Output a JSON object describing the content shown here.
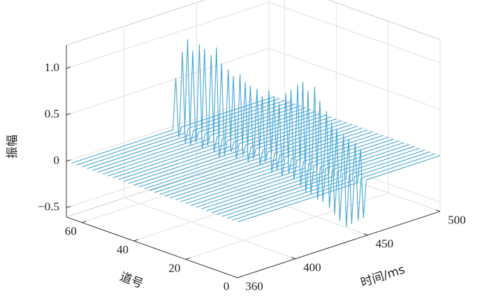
{
  "chart_data": {
    "type": "waterfall",
    "xlabel": "时间/ms",
    "ylabel": "道号",
    "zlabel": "振幅",
    "xlim": [
      360,
      500
    ],
    "xticks": [
      360,
      400,
      450,
      500
    ],
    "ylim": [
      0,
      66
    ],
    "yticks": [
      0,
      20,
      40,
      60
    ],
    "zlim": [
      -0.6,
      1.25
    ],
    "zticks": [
      {
        "value": -0.5,
        "label": "−0.5"
      },
      0,
      0.5,
      {
        "value": 1,
        "label": "1.0"
      }
    ],
    "grid": true,
    "color": "#45a6d6",
    "series": [
      {
        "channel": 64,
        "x": [
          360,
          430,
          432,
          434,
          436,
          500
        ],
        "values": [
          0,
          0,
          0.55,
          -0.1,
          0,
          0
        ]
      },
      {
        "channel": 62,
        "x": [
          360,
          431,
          433,
          435,
          437,
          500
        ],
        "values": [
          0,
          0,
          0.85,
          -0.15,
          0,
          0
        ]
      },
      {
        "channel": 60,
        "x": [
          360,
          431,
          433,
          435,
          437,
          500
        ],
        "values": [
          0,
          0,
          1.0,
          -0.15,
          0,
          0
        ]
      },
      {
        "channel": 58,
        "x": [
          360,
          431,
          433,
          435,
          437,
          500
        ],
        "values": [
          0,
          0,
          0.9,
          -0.1,
          0,
          0
        ]
      },
      {
        "channel": 56,
        "x": [
          360,
          432,
          434,
          436,
          438,
          500
        ],
        "values": [
          0,
          0,
          0.98,
          -0.15,
          0,
          0
        ]
      },
      {
        "channel": 54,
        "x": [
          360,
          432,
          434,
          436,
          438,
          500
        ],
        "values": [
          0,
          0,
          0.95,
          -0.1,
          0,
          0
        ]
      },
      {
        "channel": 52,
        "x": [
          360,
          433,
          435,
          437,
          439,
          500
        ],
        "values": [
          0,
          0,
          0.9,
          -0.15,
          0,
          0
        ]
      },
      {
        "channel": 50,
        "x": [
          360,
          433,
          435,
          437,
          439,
          500
        ],
        "values": [
          0,
          0,
          1.0,
          -0.2,
          0,
          0
        ]
      },
      {
        "channel": 48,
        "x": [
          360,
          433,
          435,
          437,
          439,
          500
        ],
        "values": [
          0,
          0,
          0.85,
          -0.15,
          0,
          0
        ]
      },
      {
        "channel": 46,
        "x": [
          360,
          434,
          436,
          438,
          440,
          500
        ],
        "values": [
          0,
          0,
          0.8,
          -0.1,
          0,
          0
        ]
      },
      {
        "channel": 44,
        "x": [
          360,
          434,
          436,
          438,
          440,
          500
        ],
        "values": [
          0,
          0,
          0.75,
          -0.15,
          0,
          0
        ]
      },
      {
        "channel": 42,
        "x": [
          360,
          435,
          437,
          439,
          441,
          500
        ],
        "values": [
          0,
          0,
          0.78,
          -0.1,
          0,
          0
        ]
      },
      {
        "channel": 40,
        "x": [
          360,
          435,
          437,
          439,
          441,
          500
        ],
        "values": [
          0,
          0,
          0.72,
          -0.15,
          0,
          0
        ]
      },
      {
        "channel": 38,
        "x": [
          360,
          435,
          437,
          439,
          441,
          500
        ],
        "values": [
          0,
          0,
          0.7,
          -0.1,
          0,
          0
        ]
      },
      {
        "channel": 36,
        "x": [
          360,
          436,
          438,
          440,
          442,
          500
        ],
        "values": [
          0,
          0,
          0.68,
          -0.15,
          0,
          0
        ]
      },
      {
        "channel": 34,
        "x": [
          360,
          436,
          438,
          440,
          442,
          500
        ],
        "values": [
          0,
          0,
          0.62,
          -0.1,
          0,
          0
        ]
      },
      {
        "channel": 32,
        "x": [
          360,
          437,
          439,
          441,
          443,
          500
        ],
        "values": [
          0,
          0,
          0.7,
          -0.2,
          0,
          0
        ]
      },
      {
        "channel": 30,
        "x": [
          360,
          437,
          439,
          441,
          443,
          500
        ],
        "values": [
          0,
          0,
          0.65,
          -0.15,
          0,
          0
        ]
      },
      {
        "channel": 28,
        "x": [
          360,
          437,
          439,
          441,
          443,
          500
        ],
        "values": [
          0,
          0,
          0.6,
          -0.2,
          0,
          0
        ]
      },
      {
        "channel": 26,
        "x": [
          360,
          438,
          440,
          442,
          444,
          500
        ],
        "values": [
          0,
          0,
          0.72,
          -0.15,
          0,
          0
        ]
      },
      {
        "channel": 24,
        "x": [
          360,
          438,
          440,
          442,
          444,
          500
        ],
        "values": [
          0,
          0,
          0.78,
          -0.2,
          0,
          0
        ]
      },
      {
        "channel": 22,
        "x": [
          360,
          439,
          441,
          443,
          445,
          500
        ],
        "values": [
          0,
          0,
          0.85,
          -0.25,
          0,
          0
        ]
      },
      {
        "channel": 20,
        "x": [
          360,
          439,
          441,
          443,
          445,
          500
        ],
        "values": [
          0,
          0,
          0.9,
          -0.3,
          0,
          0
        ]
      },
      {
        "channel": 18,
        "x": [
          360,
          439,
          441,
          443,
          445,
          500
        ],
        "values": [
          0,
          0,
          0.82,
          -0.3,
          0,
          0
        ]
      },
      {
        "channel": 16,
        "x": [
          360,
          440,
          442,
          444,
          446,
          500
        ],
        "values": [
          0,
          0,
          0.88,
          -0.35,
          0,
          0
        ]
      },
      {
        "channel": 14,
        "x": [
          360,
          440,
          442,
          444,
          446,
          500
        ],
        "values": [
          0,
          0,
          0.75,
          -0.35,
          0,
          0
        ]
      },
      {
        "channel": 12,
        "x": [
          360,
          441,
          443,
          445,
          447,
          500
        ],
        "values": [
          0,
          0,
          0.65,
          -0.4,
          0,
          0
        ]
      },
      {
        "channel": 10,
        "x": [
          360,
          441,
          443,
          445,
          447,
          500
        ],
        "values": [
          0,
          0,
          0.55,
          -0.45,
          0,
          0
        ]
      },
      {
        "channel": 8,
        "x": [
          360,
          441,
          443,
          445,
          447,
          500
        ],
        "values": [
          0,
          0,
          0.5,
          -0.5,
          0,
          0
        ]
      },
      {
        "channel": 6,
        "x": [
          360,
          442,
          444,
          446,
          448,
          500
        ],
        "values": [
          0,
          0,
          0.45,
          -0.55,
          0,
          0
        ]
      },
      {
        "channel": 4,
        "x": [
          360,
          442,
          444,
          446,
          448,
          500
        ],
        "values": [
          0,
          0,
          0.42,
          -0.5,
          0,
          0
        ]
      },
      {
        "channel": 2,
        "x": [
          360,
          443,
          445,
          447,
          449,
          500
        ],
        "values": [
          0,
          0,
          0.4,
          -0.45,
          0,
          0
        ]
      },
      {
        "channel": 0,
        "x": [
          360,
          443,
          445,
          447,
          449,
          500
        ],
        "values": [
          0,
          0,
          0.35,
          -0.4,
          0,
          0
        ]
      }
    ]
  }
}
